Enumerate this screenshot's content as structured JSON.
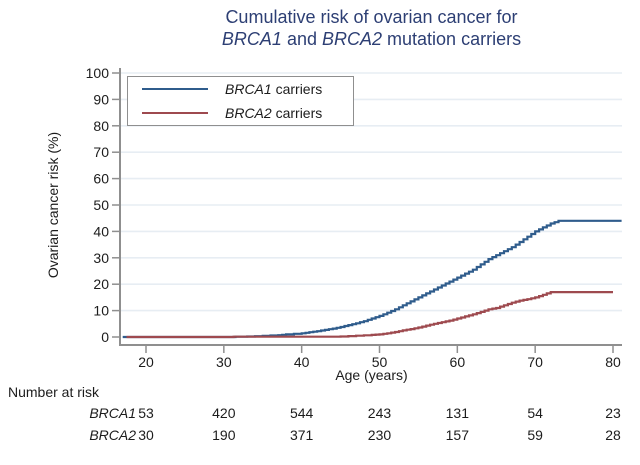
{
  "title": {
    "line1": "Cumulative risk of ovarian cancer for",
    "line2_parts": [
      {
        "text": "BRCA1",
        "italic": true
      },
      {
        "text": " and ",
        "italic": false
      },
      {
        "text": "BRCA2",
        "italic": true
      },
      {
        "text": " mutation carriers",
        "italic": false
      }
    ]
  },
  "colors": {
    "title_text": "#2d3f74",
    "brca1_line": "#2f5c8c",
    "brca2_line": "#9e4a4f",
    "gridline": "#e7edf3",
    "axis_line": "#8f8f8f",
    "tick_text": "#1c1c1c"
  },
  "chart_data": {
    "type": "line",
    "subtype": "kaplan-meier-step",
    "title": "Cumulative risk of ovarian cancer for BRCA1 and BRCA2 mutation carriers",
    "xlabel": "Age (years)",
    "ylabel": "Ovarian cancer risk (%)",
    "xlim": [
      16.7,
      81.2
    ],
    "ylim": [
      0,
      100
    ],
    "xticks": [
      20,
      30,
      40,
      50,
      60,
      70,
      80
    ],
    "yticks": [
      0,
      10,
      20,
      30,
      40,
      50,
      60,
      70,
      80,
      90,
      100
    ],
    "grid": "horizontal",
    "legend_position": "top-left",
    "series": [
      {
        "name": "BRCA1 carriers",
        "label_gene": "BRCA1",
        "label_rest": " carriers",
        "color_key": "brca1_line",
        "points": [
          [
            17,
            0
          ],
          [
            30,
            0
          ],
          [
            33,
            0.2
          ],
          [
            35,
            0.4
          ],
          [
            37,
            0.7
          ],
          [
            38,
            1
          ],
          [
            40,
            1.4
          ],
          [
            41,
            1.8
          ],
          [
            42,
            2.2
          ],
          [
            43,
            2.7
          ],
          [
            44,
            3.2
          ],
          [
            45,
            3.8
          ],
          [
            46,
            4.5
          ],
          [
            47,
            5.2
          ],
          [
            48,
            6
          ],
          [
            49,
            7
          ],
          [
            50,
            8
          ],
          [
            51,
            9.2
          ],
          [
            52,
            10.5
          ],
          [
            53,
            12
          ],
          [
            54,
            13.5
          ],
          [
            55,
            15
          ],
          [
            56,
            16.5
          ],
          [
            57,
            18
          ],
          [
            58,
            19.5
          ],
          [
            59,
            21
          ],
          [
            60,
            22.5
          ],
          [
            61,
            24
          ],
          [
            62,
            25.5
          ],
          [
            63,
            27.5
          ],
          [
            64,
            29.5
          ],
          [
            65,
            31
          ],
          [
            66,
            32.5
          ],
          [
            67,
            34
          ],
          [
            68,
            36
          ],
          [
            69,
            38
          ],
          [
            70,
            40
          ],
          [
            71,
            41.5
          ],
          [
            72,
            43
          ],
          [
            73,
            44
          ],
          [
            81.1,
            44
          ]
        ]
      },
      {
        "name": "BRCA2 carriers",
        "label_gene": "BRCA2",
        "label_rest": " carriers",
        "color_key": "brca2_line",
        "points": [
          [
            17.5,
            0
          ],
          [
            45,
            0.2
          ],
          [
            47,
            0.5
          ],
          [
            49,
            0.8
          ],
          [
            50,
            1
          ],
          [
            51,
            1.4
          ],
          [
            52,
            1.9
          ],
          [
            53,
            2.5
          ],
          [
            54,
            3
          ],
          [
            55,
            3.6
          ],
          [
            56,
            4.3
          ],
          [
            57,
            5
          ],
          [
            58,
            5.6
          ],
          [
            59,
            6.2
          ],
          [
            60,
            7
          ],
          [
            61,
            7.8
          ],
          [
            62,
            8.6
          ],
          [
            63,
            9.5
          ],
          [
            64,
            10.5
          ],
          [
            65,
            11
          ],
          [
            66,
            12
          ],
          [
            67,
            13
          ],
          [
            68,
            13.8
          ],
          [
            69,
            14.3
          ],
          [
            70,
            15
          ],
          [
            71,
            16
          ],
          [
            72,
            17
          ],
          [
            80,
            17
          ]
        ]
      }
    ]
  },
  "risk_table": {
    "heading": "Number at risk",
    "ages": [
      20,
      30,
      40,
      50,
      60,
      70,
      80
    ],
    "rows": [
      {
        "label": "BRCA1",
        "values": [
          53,
          420,
          544,
          243,
          131,
          54,
          23
        ]
      },
      {
        "label": "BRCA2",
        "values": [
          30,
          190,
          371,
          230,
          157,
          59,
          28
        ]
      }
    ]
  }
}
